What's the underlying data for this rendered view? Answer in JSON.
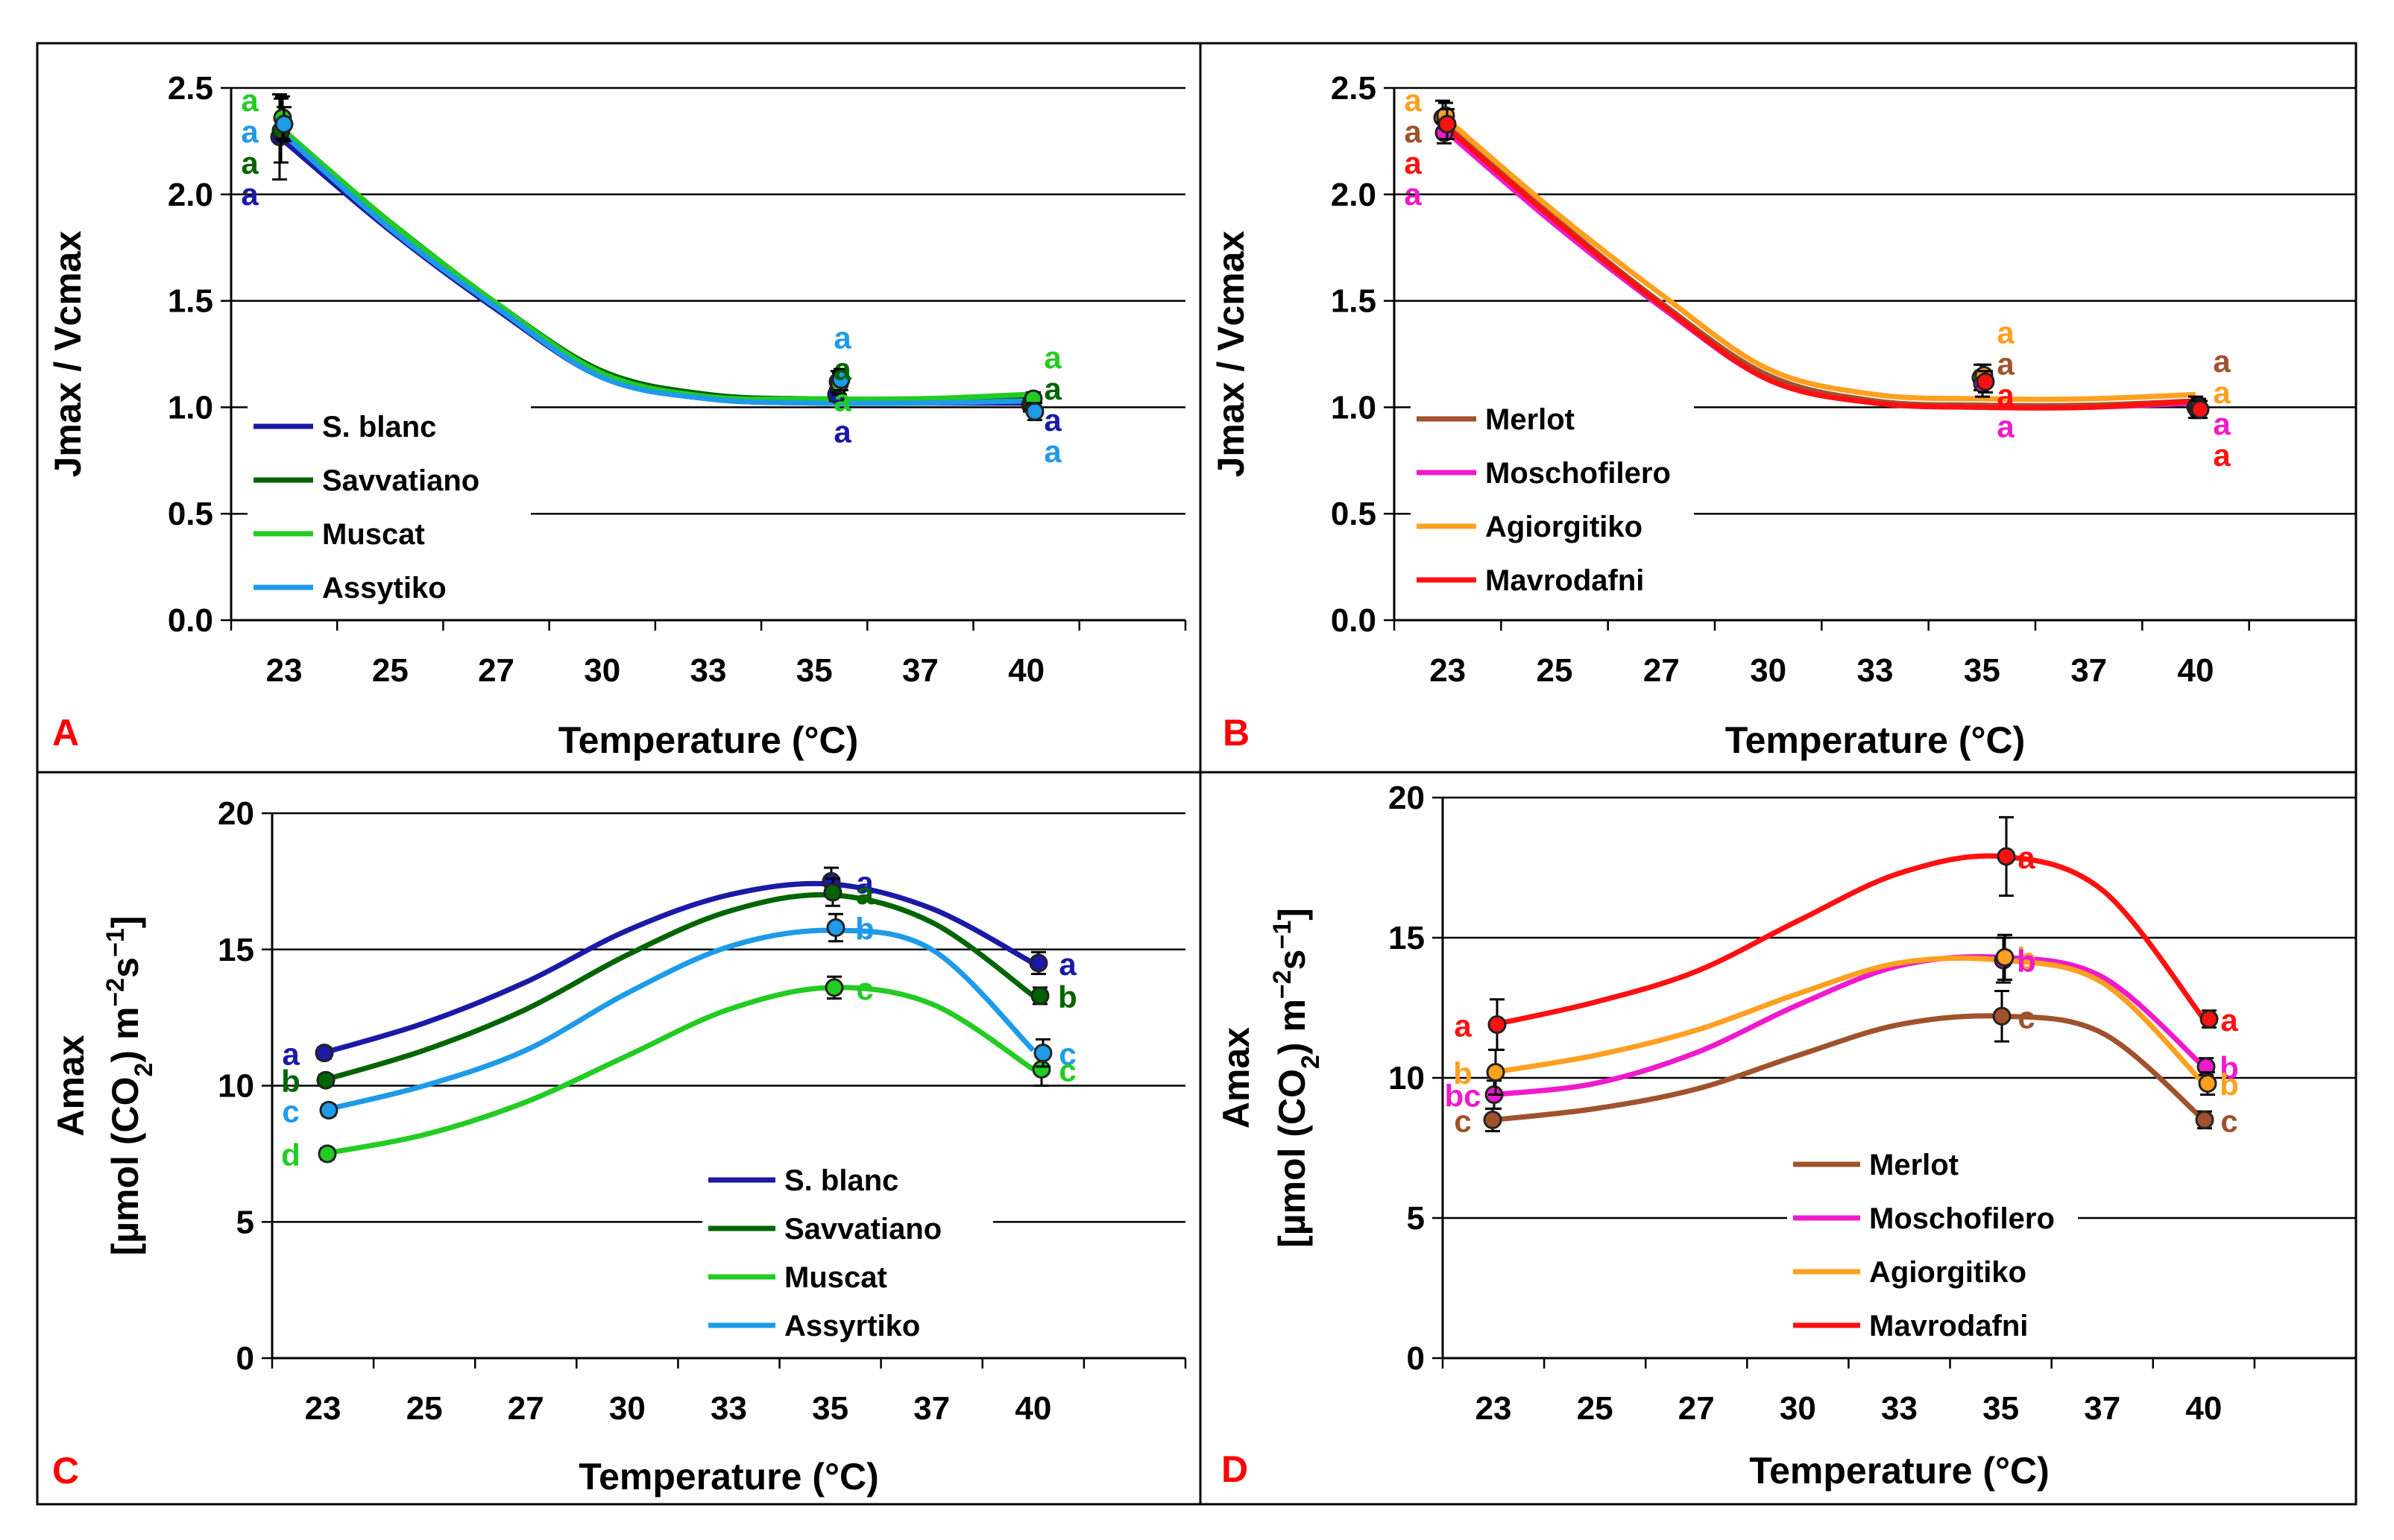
{
  "figure_colors": {
    "panel_letter": "#ff0000",
    "axis": "#000000",
    "grid": "#000000",
    "marker_stroke": "#222222"
  },
  "chart_data": [
    {
      "panel": "A",
      "type": "line",
      "xlabel": "Temperature (°C)",
      "ylabel": "Jmax / Vcmax",
      "x_ticks": [
        "23",
        "25",
        "27",
        "30",
        "33",
        "35",
        "37",
        "40"
      ],
      "ylim": [
        0,
        2.5
      ],
      "y_ticks": [
        "0.0",
        "0.5",
        "1.0",
        "1.5",
        "2.0",
        "2.5"
      ],
      "grid": true,
      "legend_position": "bottom-left",
      "series": [
        {
          "name": "S. blanc",
          "color": "#1a1aa6",
          "curve": [
            2.25,
            1.83,
            1.46,
            1.14,
            1.04,
            1.02,
            1.02,
            1.02
          ],
          "points": [
            2.27,
            1.06,
            1.01
          ],
          "errors": [
            0.2,
            0.03,
            0.03
          ],
          "letters": [
            "a",
            "a",
            "a"
          ]
        },
        {
          "name": "Savvatiano",
          "color": "#006400",
          "curve": [
            2.28,
            1.87,
            1.49,
            1.17,
            1.06,
            1.04,
            1.04,
            1.05
          ],
          "points": [
            2.3,
            1.12,
            1.02
          ],
          "errors": [
            0.15,
            0.05,
            0.03
          ],
          "letters": [
            "a",
            "a",
            "a"
          ]
        },
        {
          "name": "Muscat",
          "color": "#22cc22",
          "curve": [
            2.3,
            1.87,
            1.49,
            1.16,
            1.05,
            1.04,
            1.04,
            1.06
          ],
          "points": [
            2.36,
            1.11,
            1.04
          ],
          "errors": [
            0.1,
            0.05,
            0.03
          ],
          "letters": [
            "a",
            "a",
            "a"
          ]
        },
        {
          "name": "Assytiko",
          "color": "#1e9be8",
          "curve": [
            2.28,
            1.84,
            1.47,
            1.14,
            1.04,
            1.02,
            1.02,
            1.03
          ],
          "points": [
            2.33,
            1.13,
            0.98
          ],
          "errors": [
            0.08,
            0.05,
            0.04
          ],
          "letters": [
            "a",
            "a",
            "a"
          ]
        }
      ]
    },
    {
      "panel": "B",
      "type": "line",
      "xlabel": "Temperature (°C)",
      "ylabel": "Jmax / Vcmax",
      "x_ticks": [
        "23",
        "25",
        "27",
        "30",
        "33",
        "35",
        "37",
        "40"
      ],
      "ylim": [
        0,
        2.5
      ],
      "y_ticks": [
        "0.0",
        "0.5",
        "1.0",
        "1.5",
        "2.0",
        "2.5"
      ],
      "grid": true,
      "legend_position": "bottom-left",
      "series": [
        {
          "name": "Merlot",
          "color": "#a0522d",
          "curve": [
            2.33,
            1.89,
            1.49,
            1.15,
            1.03,
            1.01,
            1.01,
            1.03
          ],
          "points": [
            2.36,
            1.14,
            1.0
          ],
          "errors": [
            0.08,
            0.06,
            0.05
          ],
          "letters": [
            "a",
            "a",
            "a"
          ]
        },
        {
          "name": "Moschofilero",
          "color": "#ee1acc",
          "curve": [
            2.29,
            1.86,
            1.47,
            1.13,
            1.02,
            1.0,
            1.0,
            1.02
          ],
          "points": [
            2.29,
            1.11,
            0.99
          ],
          "errors": [
            0.05,
            0.06,
            0.04
          ],
          "letters": [
            "a",
            "a",
            "a"
          ]
        },
        {
          "name": "Agiorgitiko",
          "color": "#ffa020",
          "curve": [
            2.35,
            1.92,
            1.53,
            1.18,
            1.06,
            1.04,
            1.04,
            1.06
          ],
          "points": [
            2.37,
            1.15,
            1.0
          ],
          "errors": [
            0.06,
            0.05,
            0.04
          ],
          "letters": [
            "a",
            "a",
            "a"
          ]
        },
        {
          "name": "Mavrodafni",
          "color": "#ff1010",
          "curve": [
            2.31,
            1.88,
            1.48,
            1.13,
            1.02,
            1.0,
            1.0,
            1.03
          ],
          "points": [
            2.33,
            1.12,
            0.99
          ],
          "errors": [
            0.07,
            0.05,
            0.04
          ],
          "letters": [
            "a",
            "a",
            "a"
          ]
        }
      ]
    },
    {
      "panel": "C",
      "type": "line",
      "xlabel": "Temperature (°C)",
      "ylabel": "Amax",
      "ylabel2_parts": [
        "[µmol (CO",
        "2",
        ") m",
        "−2",
        "s",
        "−1",
        "]"
      ],
      "x_ticks": [
        "23",
        "25",
        "27",
        "30",
        "33",
        "35",
        "37",
        "40"
      ],
      "ylim": [
        0,
        20
      ],
      "y_ticks": [
        "0",
        "5",
        "10",
        "15",
        "20"
      ],
      "grid": true,
      "legend_position": "bottom-right",
      "series": [
        {
          "name": "S. blanc",
          "color": "#1a1aa6",
          "curve": [
            11.2,
            12.3,
            13.8,
            15.7,
            17.0,
            17.4,
            16.5,
            14.5
          ],
          "points": [
            11.2,
            17.5,
            14.5
          ],
          "errors": [
            0.2,
            0.5,
            0.4
          ],
          "letters": [
            "a",
            "a",
            "a"
          ]
        },
        {
          "name": "Savvatiano",
          "color": "#006400",
          "curve": [
            10.2,
            11.3,
            12.8,
            14.8,
            16.4,
            17.0,
            16.0,
            13.3
          ],
          "points": [
            10.2,
            17.1,
            13.3
          ],
          "errors": [
            0.2,
            0.5,
            0.3
          ],
          "letters": [
            "b",
            "a",
            "b"
          ]
        },
        {
          "name": "Muscat",
          "color": "#22cc22",
          "curve": [
            7.5,
            8.2,
            9.4,
            11.1,
            12.8,
            13.6,
            13.0,
            10.6
          ],
          "points": [
            7.5,
            13.6,
            10.6
          ],
          "errors": [
            0.2,
            0.4,
            0.6
          ],
          "letters": [
            "d",
            "c",
            "c"
          ]
        },
        {
          "name": "Assyrtiko",
          "color": "#1e9be8",
          "curve": [
            9.1,
            10.0,
            11.3,
            13.4,
            15.1,
            15.7,
            15.0,
            11.3
          ],
          "points": [
            9.1,
            15.8,
            11.2
          ],
          "errors": [
            0.2,
            0.5,
            0.5
          ],
          "letters": [
            "c",
            "b",
            "c"
          ]
        }
      ]
    },
    {
      "panel": "D",
      "type": "line",
      "xlabel": "Temperature (°C)",
      "ylabel": "Amax",
      "ylabel2_parts": [
        "[µmol (CO",
        "2",
        ") m",
        "−2",
        "s",
        "−1",
        "]"
      ],
      "x_ticks": [
        "23",
        "25",
        "27",
        "30",
        "33",
        "35",
        "37",
        "40"
      ],
      "ylim": [
        0,
        20
      ],
      "y_ticks": [
        "0",
        "5",
        "10",
        "15",
        "20"
      ],
      "grid": true,
      "legend_position": "bottom-center",
      "series": [
        {
          "name": "Merlot",
          "color": "#a0522d",
          "curve": [
            8.5,
            8.9,
            9.6,
            10.8,
            11.9,
            12.2,
            11.6,
            8.5
          ],
          "points": [
            8.5,
            12.2,
            8.5
          ],
          "errors": [
            0.4,
            0.9,
            0.3
          ],
          "letters": [
            "c",
            "c",
            "c"
          ]
        },
        {
          "name": "Moschofilero",
          "color": "#ee1acc",
          "curve": [
            9.4,
            9.8,
            10.9,
            12.6,
            14.0,
            14.3,
            13.6,
            10.4
          ],
          "points": [
            9.4,
            14.2,
            10.4
          ],
          "errors": [
            0.5,
            0.8,
            0.3
          ],
          "letters": [
            "bc",
            "b",
            "b"
          ]
        },
        {
          "name": "Agiorgitiko",
          "color": "#ffa020",
          "curve": [
            10.2,
            10.8,
            11.7,
            13.0,
            14.1,
            14.2,
            13.4,
            9.8
          ],
          "points": [
            10.2,
            14.3,
            9.8
          ],
          "errors": [
            0.8,
            0.8,
            0.4
          ],
          "letters": [
            "b",
            "b",
            "b"
          ]
        },
        {
          "name": "Mavrodafni",
          "color": "#ff1010",
          "curve": [
            11.9,
            12.7,
            13.8,
            15.6,
            17.3,
            17.9,
            16.7,
            12.1
          ],
          "points": [
            11.9,
            17.9,
            12.1
          ],
          "errors": [
            0.9,
            1.4,
            0.3
          ],
          "letters": [
            "a",
            "a",
            "a"
          ]
        }
      ]
    }
  ]
}
